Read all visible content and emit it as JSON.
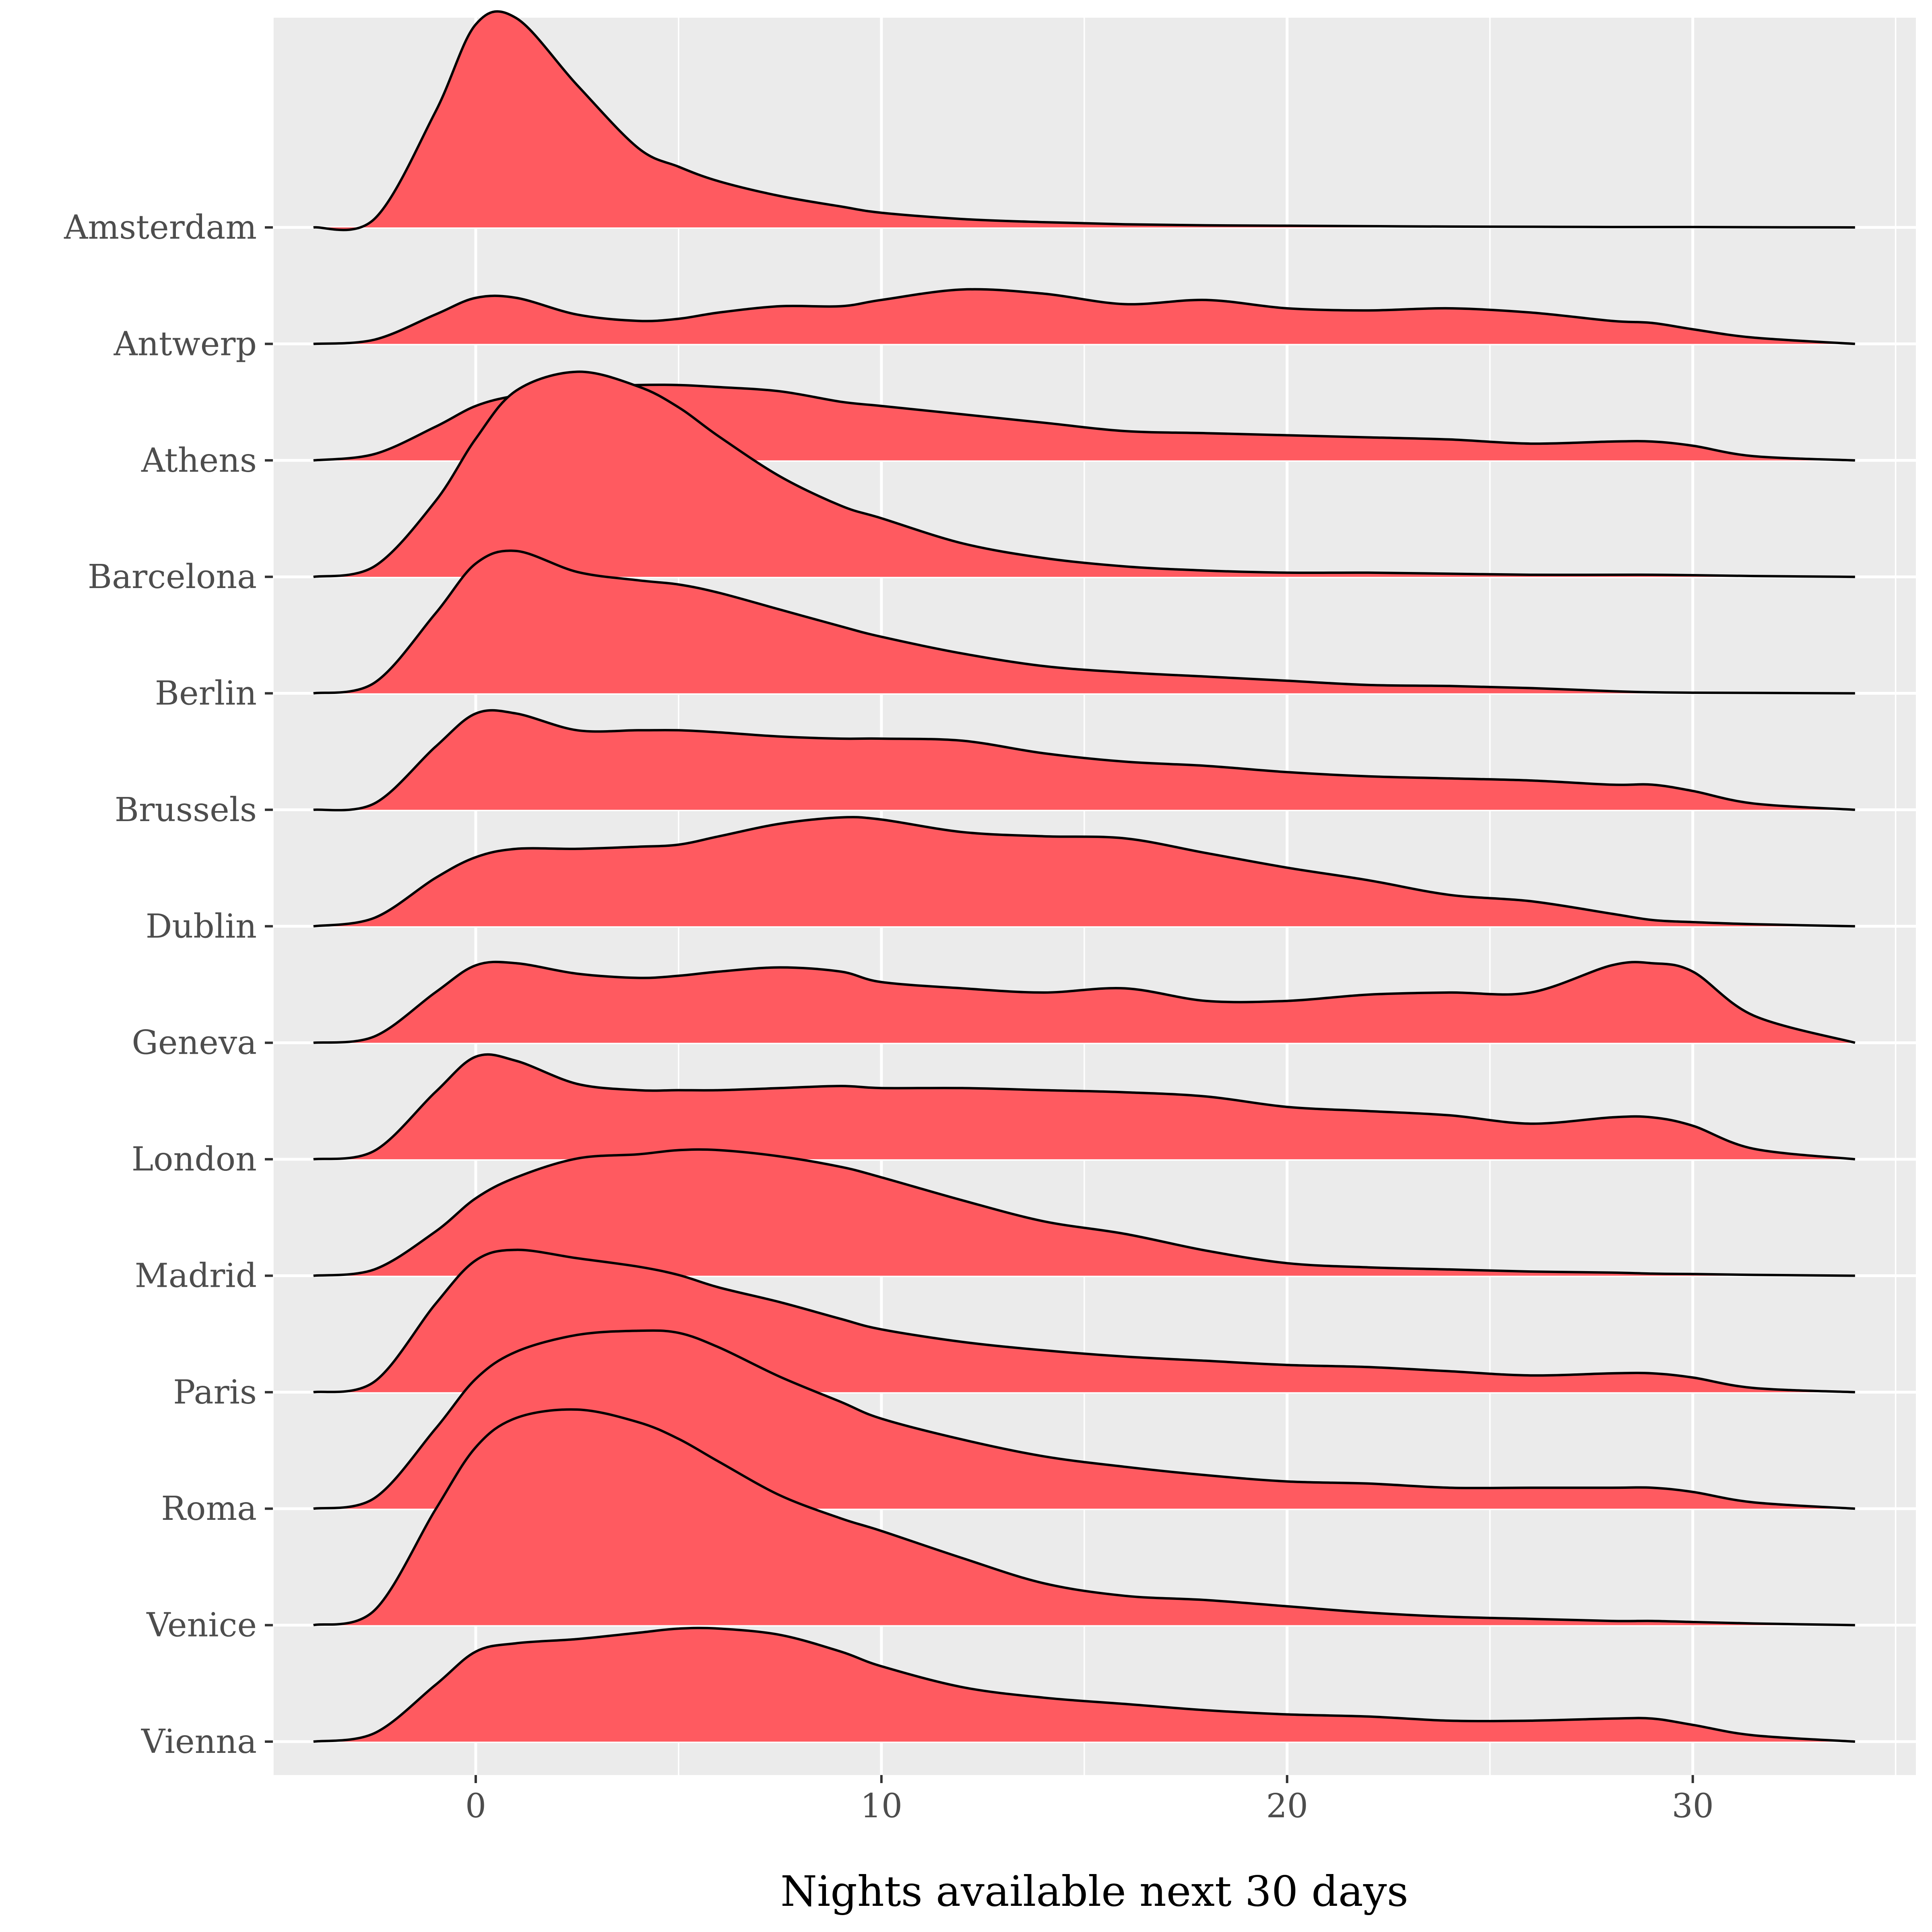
{
  "chart_data": {
    "type": "ridgeline",
    "xlabel": "Nights available next 30 days",
    "ylabel": "",
    "xlim": [
      -5,
      35.5
    ],
    "x_ticks": [
      0,
      10,
      20,
      30
    ],
    "fill_color": "#ff5a60",
    "line_color": "#000000",
    "panel_color": "#ebebeb",
    "grid": true,
    "density_x": [
      -4,
      -2.5,
      -1,
      0,
      1,
      2.5,
      4,
      5,
      6,
      7.5,
      9,
      10,
      12,
      14,
      16,
      18,
      20,
      22,
      24,
      26,
      28,
      29,
      30,
      31.5,
      34
    ],
    "series": [
      {
        "name": "Amsterdam",
        "density": [
          0,
          0.04,
          0.55,
          0.97,
          1.0,
          0.68,
          0.38,
          0.29,
          0.22,
          0.15,
          0.1,
          0.07,
          0.04,
          0.025,
          0.015,
          0.01,
          0.008,
          0.006,
          0.004,
          0.003,
          0.002,
          0.002,
          0.002,
          0.001,
          0
        ]
      },
      {
        "name": "Antwerp",
        "density": [
          0,
          0.02,
          0.14,
          0.22,
          0.22,
          0.14,
          0.11,
          0.12,
          0.15,
          0.18,
          0.18,
          0.21,
          0.26,
          0.24,
          0.19,
          0.21,
          0.17,
          0.16,
          0.17,
          0.15,
          0.11,
          0.1,
          0.07,
          0.03,
          0
        ]
      },
      {
        "name": "Athens",
        "density": [
          0,
          0.03,
          0.16,
          0.26,
          0.31,
          0.35,
          0.36,
          0.36,
          0.35,
          0.33,
          0.28,
          0.26,
          0.22,
          0.18,
          0.14,
          0.13,
          0.12,
          0.11,
          0.1,
          0.08,
          0.09,
          0.09,
          0.07,
          0.02,
          0
        ]
      },
      {
        "name": "Barcelona",
        "density": [
          0,
          0.05,
          0.36,
          0.66,
          0.89,
          0.98,
          0.91,
          0.81,
          0.67,
          0.48,
          0.34,
          0.28,
          0.16,
          0.09,
          0.05,
          0.03,
          0.02,
          0.02,
          0.015,
          0.01,
          0.01,
          0.01,
          0.008,
          0.004,
          0
        ]
      },
      {
        "name": "Berlin",
        "density": [
          0,
          0.05,
          0.38,
          0.62,
          0.68,
          0.58,
          0.54,
          0.52,
          0.48,
          0.4,
          0.32,
          0.27,
          0.19,
          0.13,
          0.1,
          0.08,
          0.06,
          0.04,
          0.035,
          0.025,
          0.01,
          0.005,
          0.003,
          0.002,
          0
        ]
      },
      {
        "name": "Brussels",
        "density": [
          0,
          0.03,
          0.3,
          0.46,
          0.46,
          0.38,
          0.38,
          0.38,
          0.37,
          0.35,
          0.34,
          0.34,
          0.33,
          0.27,
          0.23,
          0.21,
          0.18,
          0.16,
          0.15,
          0.14,
          0.12,
          0.12,
          0.09,
          0.03,
          0
        ]
      },
      {
        "name": "Dublin",
        "density": [
          0,
          0.04,
          0.23,
          0.33,
          0.37,
          0.37,
          0.38,
          0.39,
          0.43,
          0.49,
          0.52,
          0.51,
          0.45,
          0.43,
          0.42,
          0.35,
          0.28,
          0.22,
          0.15,
          0.12,
          0.06,
          0.03,
          0.02,
          0.01,
          0
        ]
      },
      {
        "name": "Geneva",
        "density": [
          0,
          0.03,
          0.24,
          0.37,
          0.38,
          0.33,
          0.31,
          0.32,
          0.34,
          0.36,
          0.34,
          0.29,
          0.26,
          0.24,
          0.26,
          0.2,
          0.2,
          0.23,
          0.24,
          0.24,
          0.37,
          0.38,
          0.34,
          0.13,
          0
        ]
      },
      {
        "name": "London",
        "density": [
          0,
          0.04,
          0.32,
          0.49,
          0.47,
          0.36,
          0.33,
          0.33,
          0.33,
          0.34,
          0.35,
          0.34,
          0.34,
          0.33,
          0.32,
          0.3,
          0.25,
          0.23,
          0.21,
          0.17,
          0.2,
          0.2,
          0.16,
          0.05,
          0
        ]
      },
      {
        "name": "Madrid",
        "density": [
          0,
          0.03,
          0.21,
          0.37,
          0.47,
          0.56,
          0.58,
          0.6,
          0.6,
          0.57,
          0.52,
          0.47,
          0.36,
          0.26,
          0.2,
          0.12,
          0.06,
          0.04,
          0.03,
          0.02,
          0.015,
          0.01,
          0.008,
          0.004,
          0
        ]
      },
      {
        "name": "Paris",
        "density": [
          0,
          0.05,
          0.42,
          0.63,
          0.68,
          0.64,
          0.6,
          0.56,
          0.5,
          0.43,
          0.35,
          0.3,
          0.24,
          0.2,
          0.17,
          0.15,
          0.13,
          0.12,
          0.1,
          0.08,
          0.09,
          0.09,
          0.07,
          0.02,
          0
        ]
      },
      {
        "name": "Roma",
        "density": [
          0,
          0.05,
          0.38,
          0.62,
          0.75,
          0.83,
          0.85,
          0.84,
          0.77,
          0.63,
          0.51,
          0.43,
          0.33,
          0.25,
          0.2,
          0.16,
          0.13,
          0.12,
          0.1,
          0.1,
          0.1,
          0.1,
          0.08,
          0.03,
          0
        ]
      },
      {
        "name": "Venice",
        "density": [
          0,
          0.07,
          0.55,
          0.85,
          0.99,
          1.03,
          0.97,
          0.89,
          0.78,
          0.62,
          0.51,
          0.45,
          0.32,
          0.2,
          0.14,
          0.12,
          0.09,
          0.06,
          0.04,
          0.03,
          0.02,
          0.02,
          0.015,
          0.008,
          0
        ]
      },
      {
        "name": "Vienna",
        "density": [
          0,
          0.04,
          0.27,
          0.43,
          0.47,
          0.49,
          0.52,
          0.54,
          0.54,
          0.51,
          0.43,
          0.36,
          0.26,
          0.21,
          0.18,
          0.15,
          0.13,
          0.12,
          0.1,
          0.1,
          0.11,
          0.11,
          0.08,
          0.03,
          0
        ]
      }
    ]
  }
}
